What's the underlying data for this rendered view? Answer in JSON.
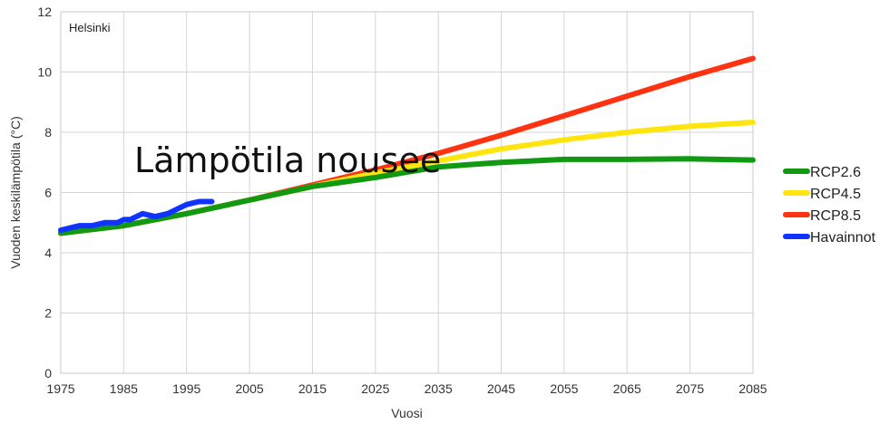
{
  "overlay_title": "Lämpötila nousee",
  "chart_data": {
    "type": "line",
    "location_label": "Helsinki",
    "xlabel": "Vuosi",
    "ylabel": "Vuoden keskilämpötila (°C)",
    "xlim": [
      1975,
      2085
    ],
    "ylim": [
      0,
      12
    ],
    "x_ticks": [
      1975,
      1985,
      1995,
      2005,
      2015,
      2025,
      2035,
      2045,
      2055,
      2065,
      2075,
      2085
    ],
    "y_ticks": [
      0,
      2,
      4,
      6,
      8,
      10,
      12
    ],
    "grid": true,
    "legend_position": "right",
    "series": [
      {
        "name": "RCP8.5",
        "color": "#ff3311",
        "x": [
          1975,
          1985,
          1995,
          2005,
          2015,
          2025,
          2035,
          2045,
          2055,
          2065,
          2075,
          2085
        ],
        "y": [
          4.65,
          4.9,
          5.3,
          5.75,
          6.25,
          6.75,
          7.3,
          7.9,
          8.55,
          9.2,
          9.85,
          10.45
        ]
      },
      {
        "name": "RCP4.5",
        "color": "#ffe510",
        "x": [
          1975,
          1985,
          1995,
          2005,
          2015,
          2025,
          2035,
          2045,
          2055,
          2065,
          2075,
          2085
        ],
        "y": [
          4.65,
          4.9,
          5.3,
          5.75,
          6.2,
          6.65,
          7.05,
          7.45,
          7.75,
          8.0,
          8.2,
          8.33
        ]
      },
      {
        "name": "RCP2.6",
        "color": "#119911",
        "x": [
          1975,
          1985,
          1995,
          2005,
          2015,
          2025,
          2035,
          2045,
          2055,
          2065,
          2075,
          2085
        ],
        "y": [
          4.65,
          4.9,
          5.3,
          5.75,
          6.2,
          6.5,
          6.85,
          7.0,
          7.1,
          7.1,
          7.12,
          7.08
        ]
      },
      {
        "name": "Havainnot",
        "color": "#1133ff",
        "x": [
          1975,
          1976,
          1977,
          1978,
          1980,
          1981,
          1982,
          1984,
          1985,
          1986,
          1988,
          1989,
          1990,
          1991,
          1992,
          1994,
          1995,
          1996,
          1997,
          1998,
          1999
        ],
        "y": [
          4.75,
          4.8,
          4.85,
          4.9,
          4.9,
          4.95,
          5.0,
          5.0,
          5.1,
          5.1,
          5.3,
          5.25,
          5.2,
          5.25,
          5.3,
          5.5,
          5.6,
          5.65,
          5.7,
          5.7,
          5.7
        ]
      }
    ]
  }
}
